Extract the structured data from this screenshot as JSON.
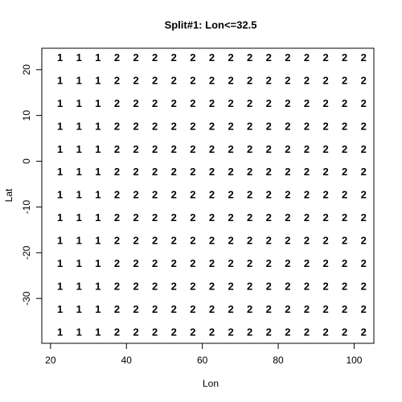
{
  "chart_data": {
    "type": "text_grid",
    "title": "Split#1: Lon<=32.5",
    "x_label": "Lon",
    "y_label": "Lat",
    "x": [
      22.5,
      27.5,
      32.5,
      37.5,
      42.5,
      47.5,
      52.5,
      57.5,
      62.5,
      67.5,
      72.5,
      77.5,
      82.5,
      87.5,
      92.5,
      97.5,
      102.5
    ],
    "y": [
      22.5,
      17.5,
      12.5,
      7.5,
      2.5,
      -2.5,
      -7.5,
      -12.5,
      -17.5,
      -22.5,
      -27.5,
      -32.5,
      -37.5
    ],
    "labels": [
      [
        "1",
        "1",
        "1",
        "2",
        "2",
        "2",
        "2",
        "2",
        "2",
        "2",
        "2",
        "2",
        "2",
        "2",
        "2",
        "2",
        "2"
      ],
      [
        "1",
        "1",
        "1",
        "2",
        "2",
        "2",
        "2",
        "2",
        "2",
        "2",
        "2",
        "2",
        "2",
        "2",
        "2",
        "2",
        "2"
      ],
      [
        "1",
        "1",
        "1",
        "2",
        "2",
        "2",
        "2",
        "2",
        "2",
        "2",
        "2",
        "2",
        "2",
        "2",
        "2",
        "2",
        "2"
      ],
      [
        "1",
        "1",
        "1",
        "2",
        "2",
        "2",
        "2",
        "2",
        "2",
        "2",
        "2",
        "2",
        "2",
        "2",
        "2",
        "2",
        "2"
      ],
      [
        "1",
        "1",
        "1",
        "2",
        "2",
        "2",
        "2",
        "2",
        "2",
        "2",
        "2",
        "2",
        "2",
        "2",
        "2",
        "2",
        "2"
      ],
      [
        "1",
        "1",
        "1",
        "2",
        "2",
        "2",
        "2",
        "2",
        "2",
        "2",
        "2",
        "2",
        "2",
        "2",
        "2",
        "2",
        "2"
      ],
      [
        "1",
        "1",
        "1",
        "2",
        "2",
        "2",
        "2",
        "2",
        "2",
        "2",
        "2",
        "2",
        "2",
        "2",
        "2",
        "2",
        "2"
      ],
      [
        "1",
        "1",
        "1",
        "2",
        "2",
        "2",
        "2",
        "2",
        "2",
        "2",
        "2",
        "2",
        "2",
        "2",
        "2",
        "2",
        "2"
      ],
      [
        "1",
        "1",
        "1",
        "2",
        "2",
        "2",
        "2",
        "2",
        "2",
        "2",
        "2",
        "2",
        "2",
        "2",
        "2",
        "2",
        "2"
      ],
      [
        "1",
        "1",
        "1",
        "2",
        "2",
        "2",
        "2",
        "2",
        "2",
        "2",
        "2",
        "2",
        "2",
        "2",
        "2",
        "2",
        "2"
      ],
      [
        "1",
        "1",
        "1",
        "2",
        "2",
        "2",
        "2",
        "2",
        "2",
        "2",
        "2",
        "2",
        "2",
        "2",
        "2",
        "2",
        "2"
      ],
      [
        "1",
        "1",
        "1",
        "2",
        "2",
        "2",
        "2",
        "2",
        "2",
        "2",
        "2",
        "2",
        "2",
        "2",
        "2",
        "2",
        "2"
      ],
      [
        "1",
        "1",
        "1",
        "2",
        "2",
        "2",
        "2",
        "2",
        "2",
        "2",
        "2",
        "2",
        "2",
        "2",
        "2",
        "2",
        "2"
      ]
    ],
    "xlim": [
      17.7,
      105.2
    ],
    "ylim": [
      -39.8,
      24.7
    ],
    "xticks": [
      20,
      40,
      60,
      80,
      100
    ],
    "yticks": [
      -30,
      -20,
      -10,
      0,
      10,
      20
    ]
  }
}
